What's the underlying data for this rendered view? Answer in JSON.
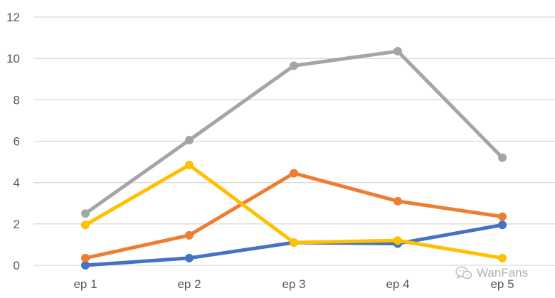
{
  "chart_data": {
    "type": "line",
    "categories": [
      "ep 1",
      "ep 2",
      "ep 3",
      "ep 4",
      "ep 5"
    ],
    "ylim": [
      0,
      12
    ],
    "yticks": [
      0,
      2,
      4,
      6,
      8,
      10,
      12
    ],
    "grid": true,
    "series": [
      {
        "color": "#4472c4",
        "values": [
          0.0,
          0.35,
          1.1,
          1.05,
          1.95
        ]
      },
      {
        "color": "#ed7d31",
        "values": [
          0.35,
          1.45,
          4.45,
          3.1,
          2.35
        ]
      },
      {
        "color": "#a5a5a5",
        "values": [
          2.5,
          6.05,
          9.65,
          10.35,
          5.2
        ]
      },
      {
        "color": "#ffc000",
        "values": [
          1.95,
          4.85,
          1.1,
          1.2,
          0.35
        ]
      }
    ]
  },
  "watermark": {
    "text": "WanFans",
    "icon": "wechat-icon"
  }
}
